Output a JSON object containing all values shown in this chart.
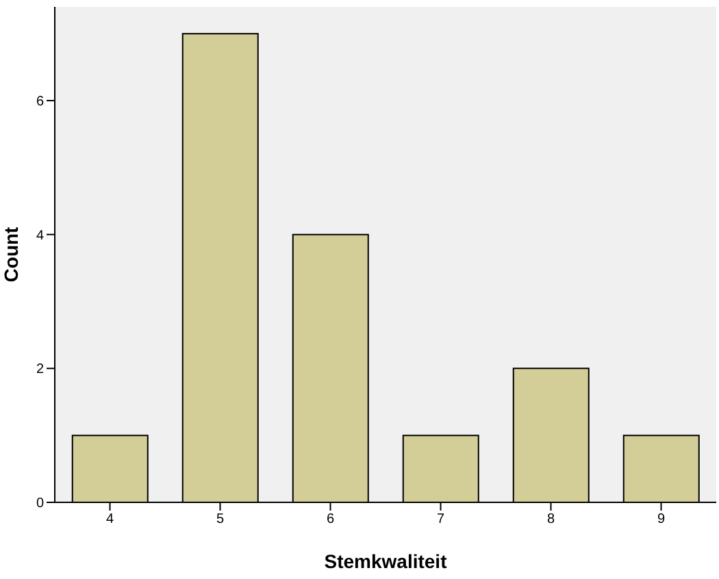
{
  "chart_data": {
    "type": "bar",
    "xlabel": "Stemkwaliteit",
    "ylabel": "Count",
    "categories": [
      "4",
      "5",
      "6",
      "7",
      "8",
      "9"
    ],
    "values": [
      1,
      7,
      4,
      1,
      2,
      1
    ],
    "color": "#d3ce98",
    "ylim": [
      0,
      7.4
    ],
    "yticks": [
      0,
      2,
      4,
      6
    ],
    "grid": false,
    "legend": false
  }
}
